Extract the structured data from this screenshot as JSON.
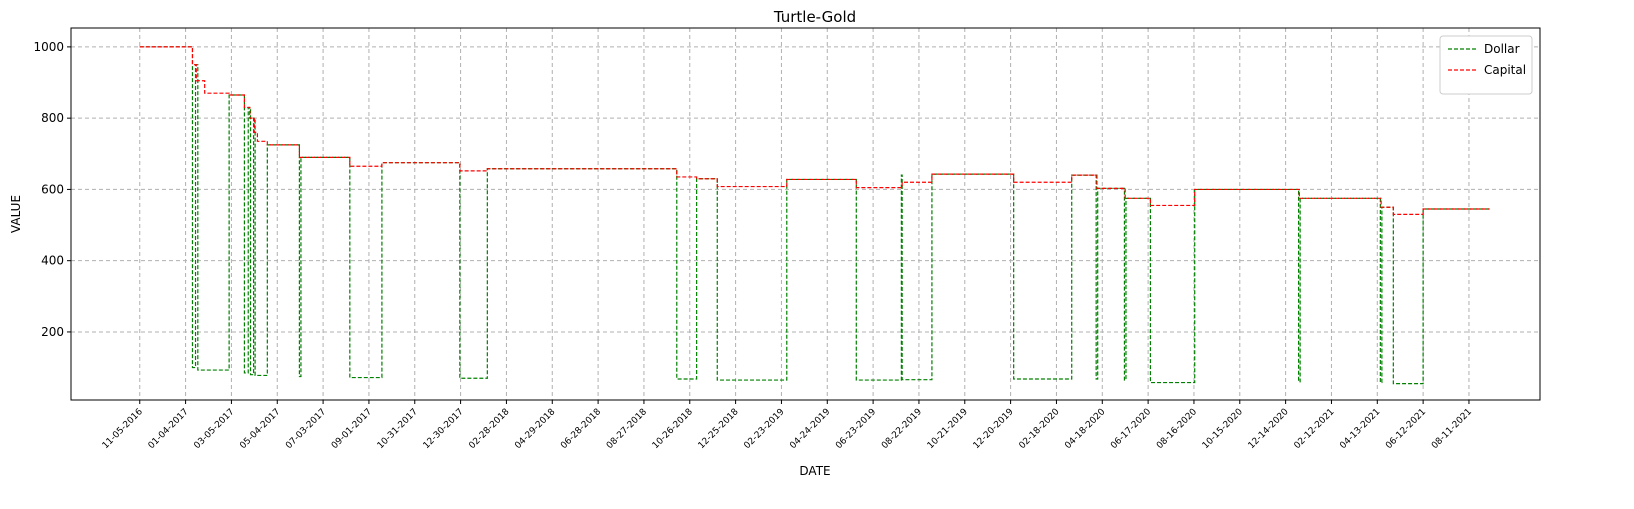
{
  "chart_data": {
    "type": "line",
    "title": "Turtle-Gold",
    "x_label": "DATE",
    "y_label": "VALUE",
    "step": "post",
    "line_style": "dashed",
    "grid": true,
    "legend": "upper right",
    "xlim": [
      "08-07-2016",
      "11-12-2021"
    ],
    "xticks": [
      "11-05-2016",
      "01-04-2017",
      "03-05-2017",
      "05-04-2017",
      "07-03-2017",
      "09-01-2017",
      "10-31-2017",
      "12-30-2017",
      "02-28-2018",
      "04-29-2018",
      "06-28-2018",
      "08-27-2018",
      "10-26-2018",
      "12-25-2018",
      "02-23-2019",
      "04-24-2019",
      "06-23-2019",
      "08-22-2019",
      "10-21-2019",
      "12-20-2019",
      "02-18-2020",
      "04-18-2020",
      "06-17-2020",
      "08-16-2020",
      "10-15-2020",
      "12-14-2020",
      "02-12-2021",
      "04-13-2021",
      "06-12-2021",
      "08-11-2021"
    ],
    "ylim": [
      9,
      1053
    ],
    "yticks": [
      200,
      400,
      600,
      800,
      1000
    ],
    "series": [
      {
        "name": "Dollar",
        "color": "#008000",
        "x": [
          "11-05-2016",
          "01-13-2017",
          "01-17-2017",
          "01-20-2017",
          "03-02-2017",
          "03-22-2017",
          "03-27-2017",
          "03-30-2017",
          "04-03-2017",
          "04-05-2017",
          "04-21-2017",
          "06-02-2017",
          "06-04-2017",
          "08-07-2017",
          "09-18-2017",
          "12-29-2017",
          "02-03-2018",
          "10-09-2018",
          "11-04-2018",
          "12-01-2018",
          "03-02-2019",
          "06-01-2019",
          "07-30-2019",
          "07-31-2019",
          "09-08-2019",
          "12-24-2019",
          "03-09-2020",
          "04-10-2020",
          "04-12-2020",
          "05-17-2020",
          "05-19-2020",
          "06-20-2020",
          "08-17-2020",
          "12-31-2020",
          "01-02-2021",
          "04-17-2021",
          "04-19-2021",
          "05-04-2021",
          "06-12-2021",
          "09-07-2021"
        ],
        "values": [
          1000,
          100,
          950,
          93,
          865,
          85,
          830,
          80,
          800,
          78,
          725,
          75,
          690,
          72,
          675,
          70,
          658,
          68,
          630,
          65,
          628,
          65,
          640,
          66,
          643,
          68,
          640,
          68,
          603,
          65,
          575,
          58,
          600,
          60,
          575,
          58,
          550,
          55,
          545,
          545
        ]
      },
      {
        "name": "Capital",
        "color": "#ff0000",
        "x": [
          "11-05-2016",
          "01-13-2017",
          "01-18-2017",
          "01-29-2017",
          "03-02-2017",
          "03-22-2017",
          "03-29-2017",
          "04-04-2017",
          "04-08-2017",
          "04-21-2017",
          "06-02-2017",
          "08-07-2017",
          "09-18-2017",
          "12-29-2017",
          "02-03-2018",
          "10-09-2018",
          "11-04-2018",
          "12-01-2018",
          "03-02-2019",
          "06-01-2019",
          "07-31-2019",
          "09-08-2019",
          "12-24-2019",
          "03-09-2020",
          "04-11-2020",
          "05-18-2020",
          "06-20-2020",
          "08-17-2020",
          "01-01-2021",
          "04-18-2021",
          "05-04-2021",
          "06-12-2021",
          "09-07-2021"
        ],
        "values": [
          1000,
          950,
          905,
          870,
          865,
          830,
          800,
          760,
          735,
          725,
          690,
          665,
          675,
          652,
          658,
          635,
          630,
          608,
          628,
          605,
          620,
          643,
          620,
          640,
          603,
          575,
          555,
          600,
          575,
          550,
          530,
          545,
          545
        ]
      }
    ]
  }
}
